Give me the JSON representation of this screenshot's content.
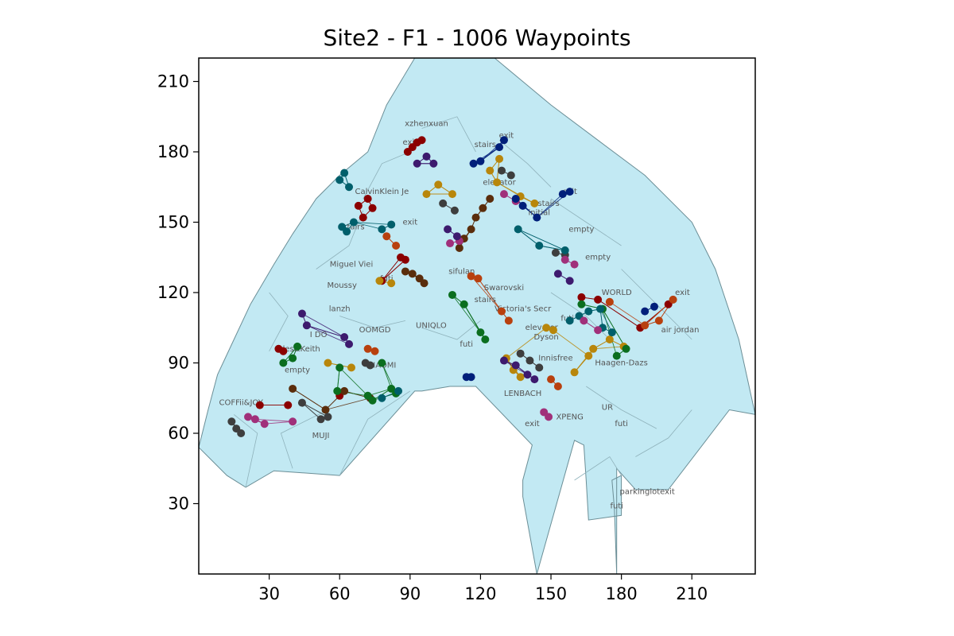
{
  "chart_data": {
    "type": "scatter",
    "title": "Site2 - F1 - 1006 Waypoints",
    "xlim": [
      0,
      237
    ],
    "ylim": [
      0,
      220
    ],
    "xticks": [
      30,
      60,
      90,
      120,
      150,
      180,
      210
    ],
    "yticks": [
      30,
      60,
      90,
      120,
      150,
      180,
      210
    ],
    "colors": {
      "floor_fill": "#c2e9f3",
      "floor_edge": "#6b8e96",
      "wall": "#8fb2bb"
    },
    "floor_polygon": [
      [
        0,
        54
      ],
      [
        6,
        48
      ],
      [
        12,
        42
      ],
      [
        20,
        37
      ],
      [
        32,
        44
      ],
      [
        60,
        42
      ],
      [
        92,
        78
      ],
      [
        95,
        78
      ],
      [
        107,
        80
      ],
      [
        118,
        80
      ],
      [
        142,
        55
      ],
      [
        138,
        40
      ],
      [
        138,
        33
      ],
      [
        144,
        0
      ],
      [
        160,
        57
      ],
      [
        164,
        55
      ],
      [
        165,
        40
      ],
      [
        166,
        23
      ],
      [
        180,
        25
      ],
      [
        180,
        42
      ],
      [
        176,
        40
      ],
      [
        177,
        28
      ],
      [
        178,
        0
      ],
      [
        178,
        45
      ],
      [
        186,
        36
      ],
      [
        200,
        36
      ],
      [
        226,
        70
      ],
      [
        237,
        68
      ],
      [
        230,
        100
      ],
      [
        220,
        130
      ],
      [
        210,
        150
      ],
      [
        190,
        170
      ],
      [
        170,
        185
      ],
      [
        150,
        200
      ],
      [
        138,
        210
      ],
      [
        126,
        220
      ],
      [
        92,
        220
      ],
      [
        80,
        200
      ],
      [
        72,
        180
      ],
      [
        60,
        170
      ],
      [
        50,
        160
      ],
      [
        40,
        145
      ],
      [
        32,
        132
      ],
      [
        22,
        115
      ],
      [
        15,
        100
      ],
      [
        8,
        85
      ],
      [
        4,
        70
      ]
    ],
    "inner_walls": [
      [
        [
          20,
          37
        ],
        [
          25,
          60
        ],
        [
          15,
          68
        ]
      ],
      [
        [
          40,
          45
        ],
        [
          35,
          60
        ],
        [
          55,
          70
        ]
      ],
      [
        [
          60,
          42
        ],
        [
          72,
          66
        ],
        [
          90,
          78
        ]
      ],
      [
        [
          30,
          95
        ],
        [
          38,
          110
        ],
        [
          30,
          120
        ]
      ],
      [
        [
          50,
          130
        ],
        [
          64,
          140
        ],
        [
          70,
          155
        ]
      ],
      [
        [
          70,
          160
        ],
        [
          78,
          175
        ],
        [
          90,
          180
        ]
      ],
      [
        [
          95,
          190
        ],
        [
          110,
          195
        ],
        [
          118,
          180
        ]
      ],
      [
        [
          128,
          185
        ],
        [
          140,
          175
        ],
        [
          150,
          165
        ]
      ],
      [
        [
          150,
          160
        ],
        [
          165,
          150
        ],
        [
          180,
          140
        ]
      ],
      [
        [
          180,
          130
        ],
        [
          195,
          115
        ],
        [
          210,
          100
        ]
      ],
      [
        [
          60,
          110
        ],
        [
          75,
          105
        ],
        [
          88,
          108
        ]
      ],
      [
        [
          95,
          105
        ],
        [
          110,
          100
        ],
        [
          120,
          108
        ]
      ],
      [
        [
          150,
          120
        ],
        [
          165,
          110
        ],
        [
          175,
          100
        ]
      ],
      [
        [
          165,
          80
        ],
        [
          180,
          70
        ],
        [
          195,
          62
        ]
      ],
      [
        [
          186,
          50
        ],
        [
          200,
          58
        ],
        [
          210,
          70
        ]
      ],
      [
        [
          160,
          40
        ],
        [
          175,
          50
        ],
        [
          180,
          42
        ]
      ]
    ],
    "shop_labels": [
      {
        "text": "xzhenxuan",
        "x": 97,
        "y": 191
      },
      {
        "text": "exit",
        "x": 90,
        "y": 183
      },
      {
        "text": "stairs",
        "x": 122,
        "y": 182
      },
      {
        "text": "exit",
        "x": 131,
        "y": 186
      },
      {
        "text": "CalvinKlein Je",
        "x": 78,
        "y": 162
      },
      {
        "text": "elevator",
        "x": 128,
        "y": 166
      },
      {
        "text": "stairs",
        "x": 149,
        "y": 157
      },
      {
        "text": "exit",
        "x": 158,
        "y": 162
      },
      {
        "text": "initial",
        "x": 145,
        "y": 153
      },
      {
        "text": "stairs",
        "x": 66,
        "y": 147
      },
      {
        "text": "exit",
        "x": 90,
        "y": 149
      },
      {
        "text": "empty",
        "x": 163,
        "y": 146
      },
      {
        "text": "Miguel Viei",
        "x": 65,
        "y": 131
      },
      {
        "text": "empty",
        "x": 170,
        "y": 134
      },
      {
        "text": "sifulan",
        "x": 112,
        "y": 128
      },
      {
        "text": "futi",
        "x": 80,
        "y": 125
      },
      {
        "text": "Moussy",
        "x": 61,
        "y": 122
      },
      {
        "text": "Swarovski",
        "x": 130,
        "y": 121
      },
      {
        "text": "WORLD",
        "x": 178,
        "y": 119
      },
      {
        "text": "exit",
        "x": 206,
        "y": 119
      },
      {
        "text": "stairs",
        "x": 122,
        "y": 116
      },
      {
        "text": "Victoria's Secr",
        "x": 138,
        "y": 112
      },
      {
        "text": "lanzh",
        "x": 60,
        "y": 112
      },
      {
        "text": "futi",
        "x": 157,
        "y": 108
      },
      {
        "text": "elevator",
        "x": 146,
        "y": 104
      },
      {
        "text": "air jordan",
        "x": 205,
        "y": 103
      },
      {
        "text": "UNIQLO",
        "x": 99,
        "y": 105
      },
      {
        "text": "I DO",
        "x": 51,
        "y": 101
      },
      {
        "text": "OOMGD",
        "x": 75,
        "y": 103
      },
      {
        "text": "Dyson",
        "x": 148,
        "y": 100
      },
      {
        "text": "futi",
        "x": 114,
        "y": 97
      },
      {
        "text": "arles&Keith",
        "x": 42,
        "y": 95
      },
      {
        "text": "Innisfree",
        "x": 152,
        "y": 91
      },
      {
        "text": "Haagen-Dazs",
        "x": 180,
        "y": 89
      },
      {
        "text": "XIAOMI",
        "x": 78,
        "y": 88
      },
      {
        "text": "empty",
        "x": 42,
        "y": 86
      },
      {
        "text": "LENBACH",
        "x": 138,
        "y": 76
      },
      {
        "text": "COFFii&JOY",
        "x": 18,
        "y": 72
      },
      {
        "text": "UR",
        "x": 174,
        "y": 70
      },
      {
        "text": "XPENG",
        "x": 158,
        "y": 66
      },
      {
        "text": "exit",
        "x": 142,
        "y": 63
      },
      {
        "text": "futi",
        "x": 180,
        "y": 63
      },
      {
        "text": "MUJI",
        "x": 52,
        "y": 58
      },
      {
        "text": "parkinglotexit",
        "x": 191,
        "y": 34
      },
      {
        "text": "futi",
        "x": 178,
        "y": 28
      }
    ],
    "series": [
      {
        "color": "#8b0000",
        "points": [
          [
            89,
            180
          ],
          [
            91,
            182
          ],
          [
            93,
            184
          ],
          [
            95,
            185
          ],
          [
            72,
            160
          ],
          [
            68,
            157
          ],
          [
            70,
            152
          ],
          [
            74,
            156
          ],
          [
            86,
            135
          ],
          [
            88,
            134
          ],
          [
            78,
            125
          ],
          [
            34,
            96
          ],
          [
            36,
            95
          ],
          [
            38,
            72
          ],
          [
            26,
            72
          ],
          [
            60,
            76
          ],
          [
            163,
            118
          ],
          [
            170,
            117
          ],
          [
            188,
            105
          ],
          [
            200,
            115
          ]
        ]
      },
      {
        "color": "#5a2d0c",
        "points": [
          [
            124,
            160
          ],
          [
            121,
            156
          ],
          [
            118,
            152
          ],
          [
            116,
            147
          ],
          [
            113,
            143
          ],
          [
            111,
            139
          ],
          [
            88,
            129
          ],
          [
            91,
            128
          ],
          [
            94,
            126
          ],
          [
            96,
            124
          ],
          [
            40,
            79
          ],
          [
            54,
            70
          ],
          [
            62,
            78
          ],
          [
            73,
            75
          ]
        ]
      },
      {
        "color": "#b8860b",
        "points": [
          [
            124,
            172
          ],
          [
            128,
            177
          ],
          [
            127,
            167
          ],
          [
            102,
            166
          ],
          [
            108,
            162
          ],
          [
            97,
            162
          ],
          [
            137,
            161
          ],
          [
            143,
            158
          ],
          [
            77,
            125
          ],
          [
            82,
            124
          ],
          [
            55,
            90
          ],
          [
            65,
            88
          ],
          [
            131,
            92
          ],
          [
            134,
            87
          ],
          [
            137,
            84
          ],
          [
            160,
            86
          ],
          [
            175,
            100
          ],
          [
            181,
            97
          ],
          [
            148,
            105
          ],
          [
            151,
            104
          ],
          [
            168,
            96
          ],
          [
            166,
            93
          ]
        ]
      },
      {
        "color": "#0b6e1f",
        "points": [
          [
            42,
            97
          ],
          [
            36,
            90
          ],
          [
            40,
            92
          ],
          [
            59,
            78
          ],
          [
            72,
            76
          ],
          [
            74,
            74
          ],
          [
            82,
            79
          ],
          [
            84,
            77
          ],
          [
            113,
            115
          ],
          [
            108,
            119
          ],
          [
            120,
            103
          ],
          [
            122,
            100
          ],
          [
            178,
            93
          ],
          [
            182,
            96
          ],
          [
            163,
            115
          ],
          [
            172,
            113
          ],
          [
            60,
            88
          ],
          [
            78,
            90
          ]
        ]
      },
      {
        "color": "#3e3e3e",
        "points": [
          [
            14,
            65
          ],
          [
            16,
            62
          ],
          [
            18,
            60
          ],
          [
            44,
            73
          ],
          [
            52,
            66
          ],
          [
            55,
            67
          ],
          [
            104,
            158
          ],
          [
            109,
            155
          ],
          [
            129,
            172
          ],
          [
            133,
            170
          ],
          [
            152,
            137
          ],
          [
            156,
            136
          ],
          [
            71,
            90
          ],
          [
            73,
            89
          ],
          [
            137,
            94
          ],
          [
            141,
            91
          ],
          [
            145,
            88
          ]
        ]
      },
      {
        "color": "#005f6b",
        "points": [
          [
            60,
            168
          ],
          [
            62,
            171
          ],
          [
            64,
            165
          ],
          [
            61,
            148
          ],
          [
            63,
            146
          ],
          [
            66,
            150
          ],
          [
            78,
            147
          ],
          [
            82,
            149
          ],
          [
            136,
            147
          ],
          [
            145,
            140
          ],
          [
            156,
            138
          ],
          [
            158,
            108
          ],
          [
            162,
            110
          ],
          [
            166,
            112
          ],
          [
            171,
            113
          ],
          [
            172,
            105
          ],
          [
            176,
            103
          ],
          [
            78,
            75
          ],
          [
            85,
            78
          ]
        ]
      },
      {
        "color": "#a0307a",
        "points": [
          [
            107,
            141
          ],
          [
            111,
            142
          ],
          [
            130,
            162
          ],
          [
            135,
            159
          ],
          [
            156,
            134
          ],
          [
            160,
            132
          ],
          [
            21,
            67
          ],
          [
            24,
            66
          ],
          [
            28,
            64
          ],
          [
            40,
            65
          ],
          [
            147,
            69
          ],
          [
            149,
            67
          ],
          [
            164,
            108
          ],
          [
            170,
            104
          ]
        ]
      },
      {
        "color": "#3d1a6e",
        "points": [
          [
            93,
            175
          ],
          [
            97,
            178
          ],
          [
            100,
            175
          ],
          [
            106,
            147
          ],
          [
            110,
            144
          ],
          [
            44,
            111
          ],
          [
            46,
            106
          ],
          [
            62,
            101
          ],
          [
            64,
            98
          ],
          [
            130,
            91
          ],
          [
            135,
            89
          ],
          [
            140,
            85
          ],
          [
            143,
            83
          ],
          [
            153,
            128
          ],
          [
            158,
            125
          ]
        ]
      },
      {
        "color": "#b8400e",
        "points": [
          [
            116,
            127
          ],
          [
            119,
            126
          ],
          [
            80,
            144
          ],
          [
            84,
            140
          ],
          [
            72,
            96
          ],
          [
            75,
            95
          ],
          [
            129,
            112
          ],
          [
            132,
            108
          ],
          [
            150,
            83
          ],
          [
            153,
            80
          ],
          [
            175,
            116
          ],
          [
            190,
            106
          ],
          [
            196,
            108
          ],
          [
            202,
            117
          ]
        ]
      },
      {
        "color": "#001f7a",
        "points": [
          [
            128,
            182
          ],
          [
            130,
            185
          ],
          [
            135,
            160
          ],
          [
            138,
            157
          ],
          [
            144,
            152
          ],
          [
            155,
            162
          ],
          [
            158,
            163
          ],
          [
            117,
            175
          ],
          [
            120,
            176
          ],
          [
            114,
            84
          ],
          [
            116,
            84
          ],
          [
            190,
            112
          ],
          [
            194,
            114
          ]
        ]
      }
    ]
  }
}
